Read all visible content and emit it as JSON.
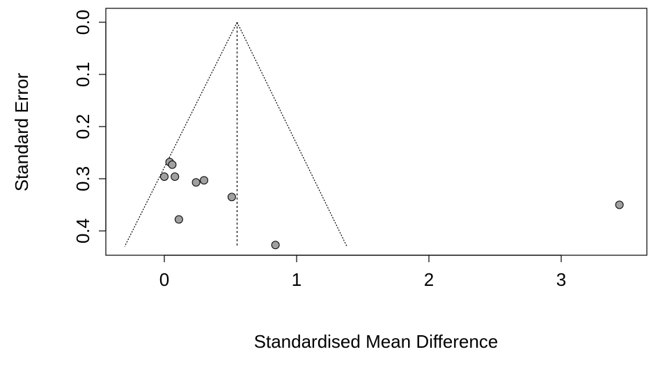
{
  "chart_data": {
    "type": "scatter",
    "subtype": "funnel",
    "title": "",
    "xlabel": "Standardised Mean Difference",
    "ylabel": "Standard Error",
    "xlim": [
      -0.45,
      3.7
    ],
    "ylim": [
      0.0,
      0.43
    ],
    "y_reversed": true,
    "xticks": [
      0,
      1,
      2,
      3
    ],
    "xtick_labels": [
      "0",
      "1",
      "2",
      "3"
    ],
    "yticks": [
      0.0,
      0.1,
      0.2,
      0.3,
      0.4
    ],
    "ytick_labels": [
      "0.0",
      "0.1",
      "0.2",
      "0.3",
      "0.4"
    ],
    "grid": false,
    "legend": "none",
    "pooled_estimate": 0.55,
    "funnel_se_max": 0.43,
    "funnel_left_x_at_max": -0.3,
    "funnel_right_x_at_max": 1.38,
    "points": [
      {
        "x": 0.04,
        "y": 0.268
      },
      {
        "x": 0.06,
        "y": 0.273
      },
      {
        "x": 0.0,
        "y": 0.296
      },
      {
        "x": 0.08,
        "y": 0.296
      },
      {
        "x": 0.24,
        "y": 0.307
      },
      {
        "x": 0.3,
        "y": 0.303
      },
      {
        "x": 0.51,
        "y": 0.335
      },
      {
        "x": 0.11,
        "y": 0.378
      },
      {
        "x": 0.84,
        "y": 0.427
      },
      {
        "x": 3.44,
        "y": 0.35
      }
    ],
    "colors": {
      "point_fill": "#a0a0a0",
      "point_stroke": "#000000",
      "lines": "#000000",
      "background": "#ffffff"
    }
  }
}
